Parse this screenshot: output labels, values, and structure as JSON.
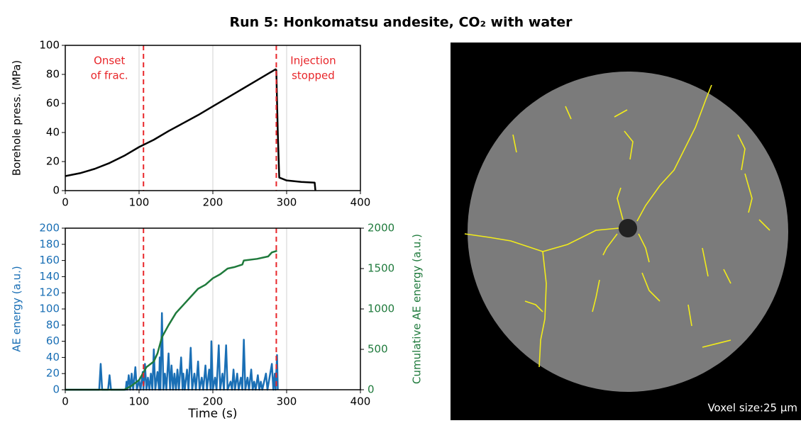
{
  "chart_data": [
    {
      "type": "line",
      "title": "Run 5: Honkomatsu andesite, CO₂ with water",
      "ylabel": "Borehole press. (MPa)",
      "xlim": [
        0,
        400
      ],
      "xticks": [
        0,
        100,
        200,
        300,
        400
      ],
      "ylim": [
        0,
        100
      ],
      "yticks": [
        0,
        20,
        40,
        60,
        80,
        100
      ],
      "xgrid": true,
      "series": [
        {
          "color": "#000000",
          "x": [
            0,
            20,
            40,
            60,
            80,
            100,
            120,
            140,
            160,
            180,
            200,
            220,
            240,
            260,
            280,
            285,
            286,
            288,
            290,
            300,
            320,
            338,
            339
          ],
          "values": [
            10,
            12,
            15,
            19,
            24,
            30,
            35,
            41,
            46.5,
            52,
            58,
            64,
            70,
            76,
            82,
            83.5,
            83,
            40,
            9,
            7,
            6,
            5.5,
            0
          ]
        }
      ],
      "vlines": [
        {
          "x": 106,
          "color": "#e8262a",
          "label": [
            "Onset",
            "of frac."
          ]
        },
        {
          "x": 286,
          "color": "#e8262a",
          "label": [
            "Injection",
            "stopped"
          ]
        }
      ]
    },
    {
      "type": "line",
      "xlabel": "Time (s)",
      "ylabel": "AE energy (a.u.)",
      "y2label": "Cumulative AE energy (a.u.)",
      "xlim": [
        0,
        400
      ],
      "xticks": [
        0,
        100,
        200,
        300,
        400
      ],
      "ylim": [
        0,
        200
      ],
      "yticks": [
        0,
        20,
        40,
        60,
        80,
        100,
        120,
        140,
        160,
        180,
        200
      ],
      "y2lim": [
        0,
        2000
      ],
      "y2ticks": [
        0,
        500,
        1000,
        1500,
        2000
      ],
      "xgrid": true,
      "ycolor": "#1a6fb5",
      "y2color": "#1f7a3c",
      "series": [
        {
          "color": "#1a6fb5",
          "x": [
            0,
            46,
            48,
            50,
            58,
            60,
            62,
            82,
            83,
            84,
            86,
            88,
            90,
            92,
            95,
            97,
            100,
            102,
            105,
            106,
            108,
            110,
            112,
            114,
            116,
            118,
            120,
            122,
            125,
            127,
            128,
            129,
            131,
            133,
            135,
            137,
            140,
            142,
            144,
            146,
            148,
            150,
            152,
            154,
            157,
            159,
            160,
            162,
            165,
            167,
            170,
            172,
            175,
            177,
            180,
            182,
            185,
            187,
            190,
            192,
            195,
            197,
            198,
            200,
            203,
            205,
            208,
            210,
            213,
            215,
            218,
            220,
            224,
            226,
            228,
            230,
            233,
            235,
            238,
            240,
            242,
            244,
            247,
            249,
            252,
            254,
            256,
            258,
            261,
            263,
            265,
            267,
            272,
            274,
            280,
            282,
            284,
            285,
            287,
            288
          ],
          "values": [
            0,
            0,
            32,
            0,
            0,
            18,
            0,
            0,
            10,
            0,
            18,
            0,
            20,
            0,
            28,
            0,
            12,
            0,
            22,
            0,
            32,
            0,
            15,
            0,
            20,
            0,
            50,
            0,
            22,
            0,
            40,
            0,
            95,
            0,
            20,
            0,
            45,
            0,
            30,
            0,
            20,
            0,
            25,
            0,
            40,
            0,
            20,
            0,
            25,
            0,
            52,
            0,
            20,
            0,
            35,
            0,
            15,
            0,
            30,
            0,
            25,
            0,
            60,
            0,
            15,
            0,
            55,
            0,
            20,
            0,
            55,
            0,
            10,
            0,
            25,
            0,
            20,
            0,
            15,
            0,
            62,
            0,
            15,
            0,
            25,
            0,
            10,
            0,
            18,
            0,
            10,
            0,
            20,
            0,
            32,
            0,
            20,
            0,
            43,
            0
          ]
        },
        {
          "color": "#1f7a3c",
          "axis": "y2",
          "x": [
            0,
            80,
            90,
            100,
            105,
            110,
            120,
            125,
            131,
            140,
            150,
            160,
            170,
            180,
            190,
            200,
            210,
            220,
            230,
            240,
            242,
            260,
            275,
            280,
            287
          ],
          "values": [
            0,
            0,
            50,
            120,
            200,
            280,
            350,
            450,
            650,
            800,
            950,
            1050,
            1150,
            1250,
            1300,
            1380,
            1430,
            1500,
            1520,
            1550,
            1600,
            1620,
            1650,
            1700,
            1720
          ]
        }
      ],
      "vlines": [
        {
          "x": 106,
          "color": "#e8262a"
        },
        {
          "x": 286,
          "color": "#e8262a"
        }
      ]
    }
  ],
  "image": {
    "caption": "Voxel size:25 µm"
  }
}
